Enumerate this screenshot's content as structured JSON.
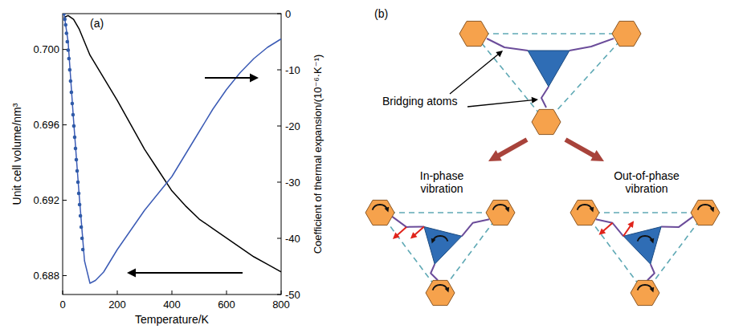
{
  "chart_data": {
    "type": "line",
    "panel_label": "(a)",
    "xlabel": "Temperature/K",
    "ylabel": "Unit cell volume/nm³",
    "y2label": "Coefficient of thermal expansion/(10⁻⁶·K⁻¹)",
    "xlim": [
      0,
      800
    ],
    "xticks": [
      0,
      200,
      400,
      600,
      800
    ],
    "ylim": [
      0.687,
      0.7019
    ],
    "yticks": [
      0.688,
      0.692,
      0.696,
      {
        "value": 0.7,
        "label": "0.700"
      }
    ],
    "y2lim": [
      -50,
      0
    ],
    "y2ticks": [
      0,
      -10,
      -20,
      -30,
      -40,
      -50
    ],
    "grid": false,
    "series": [
      {
        "color": "#000000",
        "type": "line",
        "x": [
          5,
          20,
          40,
          60,
          80,
          100,
          150,
          200,
          250,
          300,
          350,
          400,
          450,
          500,
          550,
          600,
          650,
          700,
          750,
          800
        ],
        "values": [
          0.7017,
          0.7018,
          0.7016,
          0.7011,
          0.7004,
          0.6997,
          0.6985,
          0.6973,
          0.696,
          0.6947,
          0.6936,
          0.6925,
          0.6917,
          0.691,
          0.6905,
          0.69,
          0.6895,
          0.689,
          0.6886,
          0.6882
        ]
      },
      {
        "color": "#3b5bb5",
        "type": "line",
        "axis": "y2",
        "x": [
          5,
          20,
          40,
          60,
          80,
          100,
          120,
          150,
          200,
          250,
          300,
          350,
          400,
          450,
          500,
          550,
          600,
          650,
          700,
          750,
          800
        ],
        "values": [
          0,
          -5,
          -19,
          -32,
          -44,
          -48,
          -47.5,
          -46,
          -42,
          -38.5,
          -35,
          -32,
          -29,
          -25,
          -21,
          -17,
          -13.5,
          -10.5,
          -8,
          -6,
          -4.5
        ]
      },
      {
        "color": "#2f5aa8",
        "type": "scatter",
        "axis": "y2",
        "marker": "circle",
        "x": [
          5,
          8,
          11,
          14,
          17,
          20,
          23,
          26,
          29,
          32,
          35,
          38,
          41,
          44,
          47,
          50,
          53,
          56,
          59,
          62,
          65,
          68,
          71,
          74
        ],
        "values": [
          0,
          -1,
          -2,
          -3.5,
          -5,
          -6.5,
          -8,
          -10,
          -12,
          -14,
          -16,
          -18,
          -20,
          -22,
          -24,
          -26,
          -28,
          -30,
          -32,
          -34,
          -36,
          -38,
          -40,
          -42
        ]
      }
    ]
  },
  "diagram": {
    "panel_label": "(b)",
    "bridging_label": "Bridging atoms",
    "modes": [
      {
        "label": "In-phase vibration"
      },
      {
        "label": "Out-of-phase vibration"
      }
    ]
  }
}
